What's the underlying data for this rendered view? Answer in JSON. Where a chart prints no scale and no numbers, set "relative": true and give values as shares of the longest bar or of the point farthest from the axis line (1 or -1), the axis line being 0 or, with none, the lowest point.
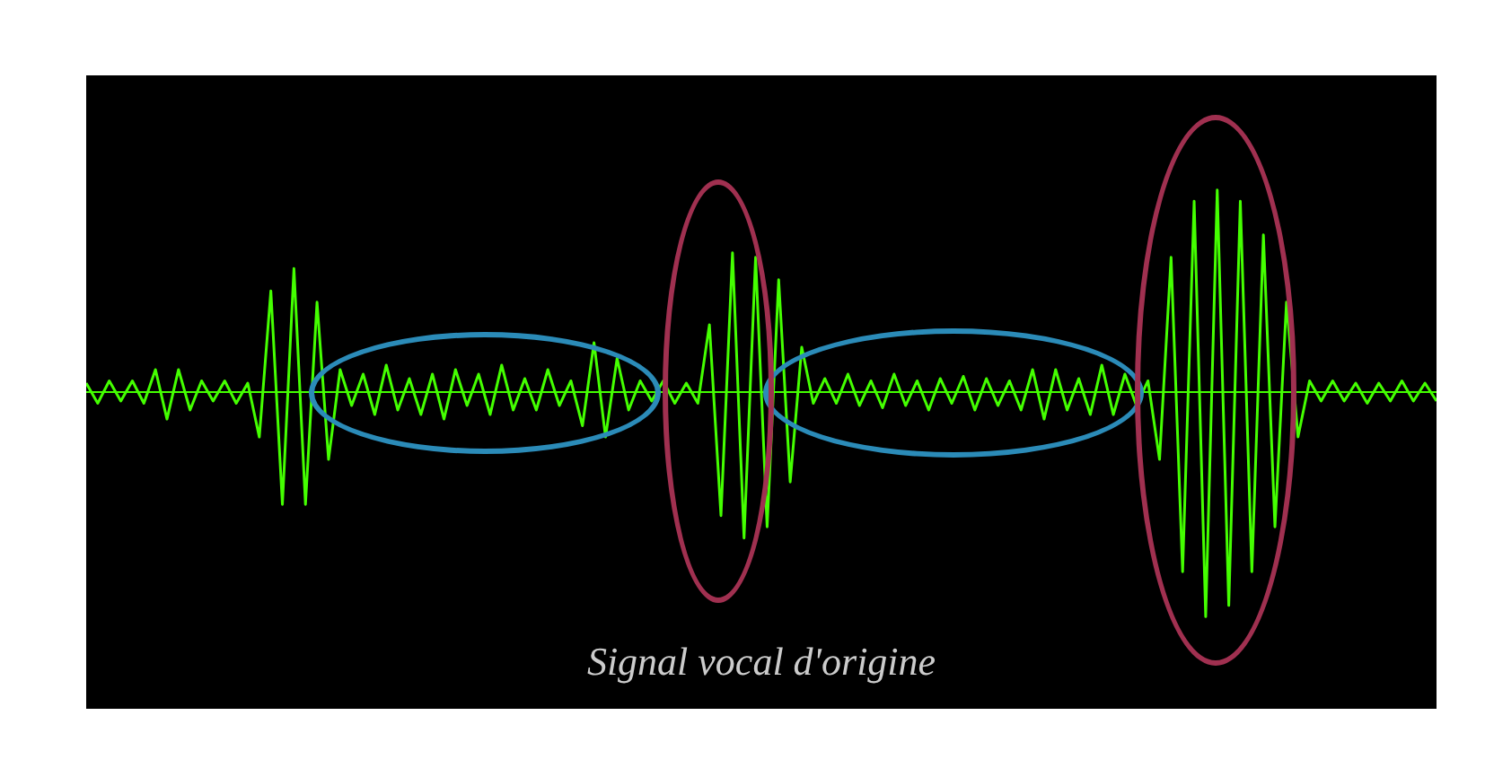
{
  "chart_data": {
    "type": "line",
    "title": "Signal vocal d'origine",
    "relative": true,
    "color": "#44ff00",
    "ref_lines": [
      {
        "axis": "y",
        "value": 0,
        "color": "#44ff00"
      }
    ],
    "categories": [
      null,
      null,
      null,
      null,
      null,
      null,
      null,
      null,
      null,
      null,
      null,
      null,
      null,
      null,
      null,
      null,
      null,
      null,
      null,
      null,
      null,
      null,
      null,
      null,
      null,
      null,
      null,
      null,
      null,
      null,
      null,
      null,
      null,
      null,
      null,
      null,
      null,
      null,
      null,
      null,
      null,
      null,
      null,
      null,
      null,
      null,
      null,
      null,
      null,
      null,
      null,
      null,
      null,
      null,
      null,
      null,
      null,
      null,
      null,
      null,
      null,
      null,
      null,
      null,
      null,
      null,
      null,
      null,
      null,
      null,
      null,
      null,
      null,
      null,
      null,
      null,
      null,
      null,
      null,
      null,
      null,
      null,
      null,
      null,
      null,
      null,
      null,
      null,
      null,
      null,
      null,
      null,
      null,
      null,
      null,
      null,
      null,
      null,
      null,
      null,
      null,
      null,
      null,
      null,
      null,
      null,
      null,
      null,
      null,
      null,
      null,
      null,
      null,
      null,
      null,
      null,
      null,
      null
    ],
    "values": [
      0.04,
      -0.05,
      0.05,
      -0.04,
      0.05,
      -0.05,
      0.1,
      -0.12,
      0.1,
      -0.08,
      0.05,
      -0.04,
      0.05,
      -0.05,
      0.04,
      -0.2,
      0.45,
      -0.5,
      0.55,
      -0.5,
      0.4,
      -0.3,
      0.1,
      -0.06,
      0.08,
      -0.1,
      0.12,
      -0.08,
      0.06,
      -0.1,
      0.08,
      -0.12,
      0.1,
      -0.06,
      0.08,
      -0.1,
      0.12,
      -0.08,
      0.06,
      -0.08,
      0.1,
      -0.06,
      0.05,
      -0.15,
      0.22,
      -0.2,
      0.15,
      -0.08,
      0.05,
      -0.04,
      0.05,
      -0.05,
      0.04,
      -0.05,
      0.3,
      -0.55,
      0.62,
      -0.65,
      0.6,
      -0.6,
      0.5,
      -0.4,
      0.2,
      -0.05,
      0.06,
      -0.05,
      0.08,
      -0.06,
      0.05,
      -0.07,
      0.08,
      -0.06,
      0.05,
      -0.08,
      0.06,
      -0.05,
      0.07,
      -0.08,
      0.06,
      -0.06,
      0.05,
      -0.08,
      0.1,
      -0.12,
      0.1,
      -0.08,
      0.06,
      -0.1,
      0.12,
      -0.1,
      0.08,
      -0.06,
      0.05,
      -0.3,
      0.6,
      -0.8,
      0.85,
      -1,
      0.9,
      -0.95,
      0.85,
      -0.8,
      0.7,
      -0.6,
      0.4,
      -0.2,
      0.05,
      -0.04,
      0.05,
      -0.04,
      0.04,
      -0.05,
      0.04,
      -0.04,
      0.05,
      -0.04,
      0.04,
      -0.04
    ]
  }
}
